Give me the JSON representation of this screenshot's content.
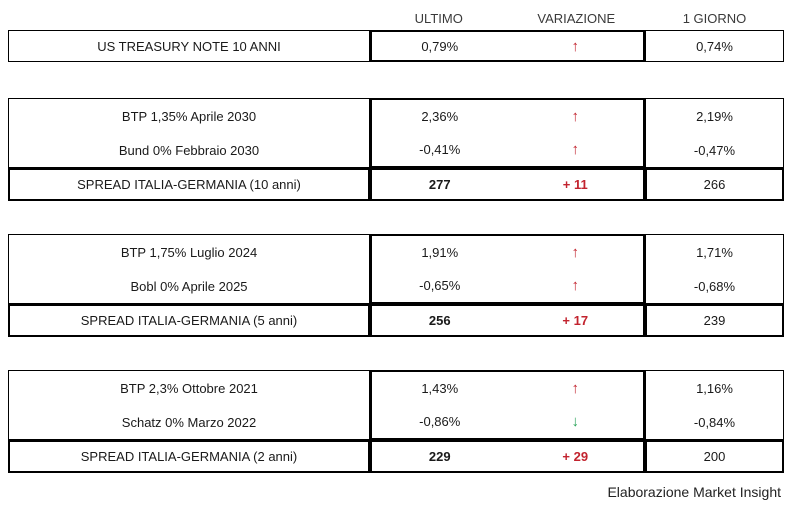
{
  "header": {
    "ultimo": "ULTIMO",
    "variazione": "VARIAZIONE",
    "giorno": "1 GIORNO"
  },
  "sections": [
    {
      "name": "us-treasury",
      "rows": [
        {
          "label": "US TREASURY NOTE 10 ANNI",
          "ultimo": "0,79%",
          "arrow": "↑",
          "dir": "up",
          "giorno": "0,74%"
        }
      ]
    },
    {
      "name": "italia-germania-10-anni",
      "rows": [
        {
          "label": "BTP 1,35% Aprile 2030",
          "ultimo": "2,36%",
          "arrow": "↑",
          "dir": "up",
          "giorno": "2,19%"
        },
        {
          "label": "Bund 0% Febbraio 2030",
          "ultimo": "-0,41%",
          "arrow": "↑",
          "dir": "up",
          "giorno": "-0,47%"
        }
      ],
      "spread": {
        "label": "SPREAD ITALIA-GERMANIA (10 anni)",
        "ultimo": "277",
        "variazione": "+ 11",
        "giorno": "266"
      }
    },
    {
      "name": "italia-germania-5-anni",
      "rows": [
        {
          "label": "BTP 1,75% Luglio 2024",
          "ultimo": "1,91%",
          "arrow": "↑",
          "dir": "up",
          "giorno": "1,71%"
        },
        {
          "label": "Bobl 0% Aprile 2025",
          "ultimo": "-0,65%",
          "arrow": "↑",
          "dir": "up",
          "giorno": "-0,68%"
        }
      ],
      "spread": {
        "label": "SPREAD ITALIA-GERMANIA (5 anni)",
        "ultimo": "256",
        "variazione": "+ 17",
        "giorno": "239"
      }
    },
    {
      "name": "italia-germania-2-anni",
      "rows": [
        {
          "label": "BTP 2,3% Ottobre 2021",
          "ultimo": "1,43%",
          "arrow": "↑",
          "dir": "up",
          "giorno": "1,16%"
        },
        {
          "label": "Schatz 0% Marzo 2022",
          "ultimo": "-0,86%",
          "arrow": "↓",
          "dir": "down",
          "giorno": "-0,84%"
        }
      ],
      "spread": {
        "label": "SPREAD ITALIA-GERMANIA (2 anni)",
        "ultimo": "229",
        "variazione": "+ 29",
        "giorno": "200"
      }
    }
  ],
  "footer": {
    "credit": "Elaborazione Market Insight"
  },
  "colors": {
    "up_arrow_red": "#c2232e",
    "down_arrow_green": "#27a257",
    "border_black": "#000000",
    "text": "#1a1a1a"
  }
}
